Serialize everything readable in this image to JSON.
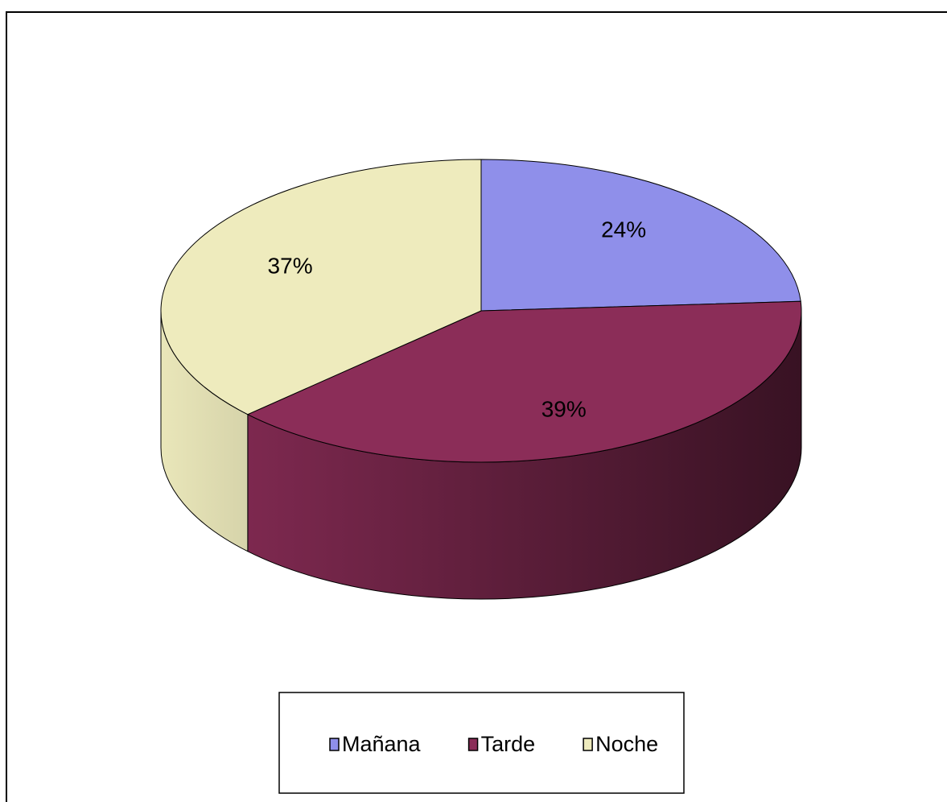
{
  "chart_data": {
    "type": "pie3d",
    "categories": [
      "Mañana",
      "Tarde",
      "Noche"
    ],
    "values": [
      24,
      39,
      37
    ],
    "value_labels": [
      "24%",
      "39%",
      "37%"
    ],
    "colors": [
      "#8f8fea",
      "#8b2d58",
      "#eeebbd"
    ],
    "legend": "bottom"
  }
}
